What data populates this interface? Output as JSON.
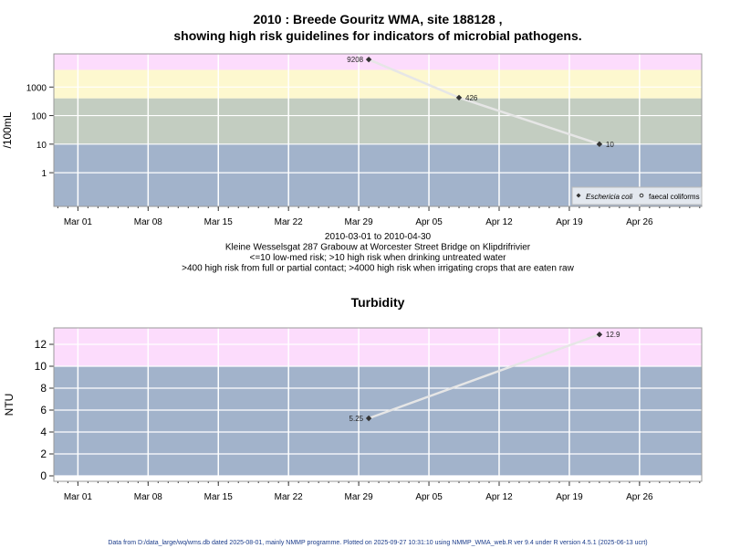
{
  "chart_data": [
    {
      "type": "line",
      "title_line1": "2010 : Breede Gouritz WMA, site 188128 ,",
      "title_line2": "showing high risk guidelines for indicators of microbial pathogens.",
      "ylabel": "/100mL",
      "yscale": "log",
      "ylim": [
        0.066,
        14500
      ],
      "yticks": [
        1,
        10,
        100,
        1000
      ],
      "ytick_labels": [
        "1",
        "10",
        "100",
        "1000"
      ],
      "xlim": [
        "2010-02-26.6",
        "2010-05-02.2"
      ],
      "xticks": [
        "2010-03-01",
        "2010-03-08",
        "2010-03-15",
        "2010-03-22",
        "2010-03-29",
        "2010-04-05",
        "2010-04-12",
        "2010-04-19",
        "2010-04-26"
      ],
      "xtick_labels": [
        "Mar 01",
        "Mar 08",
        "Mar 15",
        "Mar 22",
        "Mar 29",
        "Apr 05",
        "Apr 12",
        "Apr 19",
        "Apr 26"
      ],
      "bands": [
        {
          "from": 4000,
          "to": 1000000000.0,
          "color": "#fcdcfc"
        },
        {
          "from": 400,
          "to": 4000,
          "color": "#fdf8cf"
        },
        {
          "from": 10,
          "to": 400,
          "color": "#c3cdc1"
        },
        {
          "from": 0,
          "to": 10,
          "color": "#a2b3cb"
        }
      ],
      "series": [
        {
          "name": "Eschericia coli",
          "marker": "filled",
          "x": [
            "2010-03-30",
            "2010-04-08",
            "2010-04-22"
          ],
          "y": [
            9208,
            426,
            10
          ],
          "labels": [
            "9208",
            "426",
            "10"
          ],
          "label_side": [
            "left",
            "right",
            "right"
          ]
        }
      ],
      "legend": {
        "position": "bottom-right",
        "entries": [
          "Eschericia coli",
          "faecal coliforms"
        ]
      },
      "caption": [
        "2010-03-01 to 2010-04-30",
        "Kleine Wesselsgat 287 Grabouw at Worcester Street Bridge on Klipdrifrivier",
        "<=10 low-med risk; >10 high risk when drinking untreated water",
        ">400 high risk from full or partial contact; >4000 high risk when irrigating crops that are eaten raw"
      ]
    },
    {
      "type": "line",
      "title": "Turbidity",
      "ylabel": "NTU",
      "yscale": "linear",
      "ylim": [
        -0.5,
        13.5
      ],
      "yticks": [
        0,
        2,
        4,
        6,
        8,
        10,
        12
      ],
      "ytick_labels": [
        "0",
        "2",
        "4",
        "6",
        "8",
        "10",
        "12"
      ],
      "xlim": [
        "2010-02-26.6",
        "2010-05-02.2"
      ],
      "bands": [
        {
          "from": 10,
          "to": 100,
          "color": "#fcdcfc"
        },
        {
          "from": -10,
          "to": 10,
          "color": "#a2b3cb"
        }
      ],
      "series": [
        {
          "name": "Turbidity",
          "marker": "filled",
          "x": [
            "2010-03-30",
            "2010-04-22"
          ],
          "y": [
            5.25,
            12.9
          ],
          "labels": [
            "5.25",
            "12.9"
          ],
          "label_side": [
            "left",
            "right"
          ]
        }
      ]
    }
  ],
  "footer": "Data from D:/data_large/wq/wms.db dated 2025-08-01, mainly NMMP programme. Plotted on 2025-09-27 10:31:10 using NMMP_WMA_web.R ver 9.4 under R version 4.5.1 (2025-06-13 ucrt)"
}
